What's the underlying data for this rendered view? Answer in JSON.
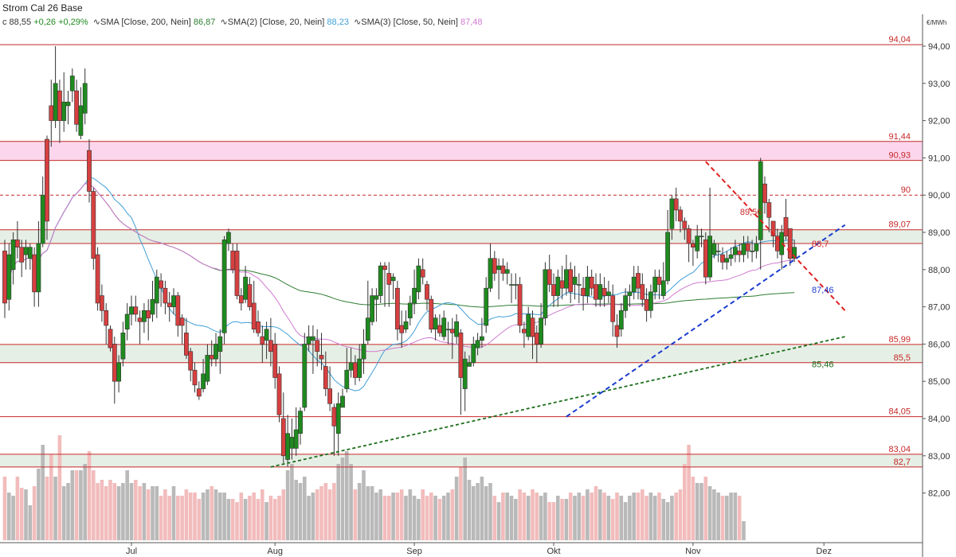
{
  "header": {
    "title": "Strom Cal 26 Base",
    "close_label": "c 88,55",
    "change_abs": "+0,26",
    "change_pct": "+0,29%",
    "indicators": [
      {
        "label": "SMA [Close, 200, Nein]",
        "value": "86,87",
        "color": "#2e7d32"
      },
      {
        "label": "SMA(2) [Close, 20, Nein]",
        "value": "88,23",
        "color": "#3f9fd8"
      },
      {
        "label": "SMA(3) [Close, 50, Nein]",
        "value": "87,48",
        "color": "#d07ad0"
      }
    ],
    "unit": "€/MWh"
  },
  "colors": {
    "up": "#1f8a1f",
    "down": "#d64040",
    "level": "#c62828",
    "zone_green": "#e6efe6",
    "zone_pink": "#fcd6ec",
    "vol_up": "#b9b9b9",
    "vol_down": "#f2bcbc",
    "trend_blue": "#1a3ccf",
    "trend_green": "#1b6e1b",
    "trend_red": "#e02020"
  },
  "chart_data": {
    "type": "candlestick",
    "title": "Strom Cal 26 Base",
    "ylabel": "€/MWh",
    "ylim": [
      81.0,
      94.6
    ],
    "yticks": [
      {
        "v": 82,
        "label": "82,00"
      },
      {
        "v": 83,
        "label": "83,00"
      },
      {
        "v": 84,
        "label": "84,00"
      },
      {
        "v": 85,
        "label": "85,00"
      },
      {
        "v": 86,
        "label": "86,00"
      },
      {
        "v": 87,
        "label": "87,00"
      },
      {
        "v": 88,
        "label": "88,00"
      },
      {
        "v": 89,
        "label": "89,00"
      },
      {
        "v": 90,
        "label": "90,00"
      },
      {
        "v": 91,
        "label": "91,00"
      },
      {
        "v": 92,
        "label": "92,00"
      },
      {
        "v": 93,
        "label": "93,00"
      },
      {
        "v": 94,
        "label": "94,00"
      }
    ],
    "xticks": [
      {
        "i": 30,
        "label": "Jul"
      },
      {
        "i": 64,
        "label": "Aug"
      },
      {
        "i": 97,
        "label": "Sep"
      },
      {
        "i": 130,
        "label": "Okt"
      },
      {
        "i": 163,
        "label": "Nov"
      },
      {
        "i": 194,
        "label": "Dez"
      }
    ],
    "candles": [
      [
        88.5,
        87.1,
        88.8,
        86.7
      ],
      [
        87.2,
        88.4,
        88.7,
        86.9
      ],
      [
        88.0,
        88.8,
        89.0,
        87.6
      ],
      [
        88.8,
        88.6,
        89.3,
        88.3
      ],
      [
        88.6,
        88.2,
        88.8,
        87.8
      ],
      [
        88.4,
        88.6,
        88.8,
        88.0
      ],
      [
        88.3,
        88.6,
        88.7,
        88.0
      ],
      [
        88.4,
        87.4,
        88.6,
        87.0
      ],
      [
        87.4,
        88.7,
        89.3,
        87.0
      ],
      [
        88.7,
        90.0,
        90.5,
        88.6
      ],
      [
        91.5,
        89.3,
        91.6,
        88.8
      ],
      [
        92.4,
        92.0,
        93.1,
        91.3
      ],
      [
        92.0,
        93.0,
        94.0,
        91.8
      ],
      [
        92.8,
        92.0,
        93.1,
        91.4
      ],
      [
        92.0,
        92.5,
        93.3,
        91.7
      ],
      [
        92.4,
        92.5,
        92.8,
        91.9
      ],
      [
        92.8,
        93.2,
        93.4,
        92.5
      ],
      [
        92.8,
        91.9,
        93.1,
        91.7
      ],
      [
        91.6,
        92.4,
        92.9,
        91.5
      ],
      [
        92.2,
        93.0,
        93.4,
        91.9
      ],
      [
        91.2,
        90.1,
        91.5,
        89.8
      ],
      [
        90.1,
        88.3,
        90.2,
        88.0
      ],
      [
        88.4,
        87.1,
        88.6,
        86.9
      ],
      [
        87.3,
        86.9,
        87.6,
        86.6
      ],
      [
        86.9,
        86.5,
        87.1,
        86.0
      ],
      [
        86.4,
        85.9,
        86.5,
        85.8
      ],
      [
        86.0,
        85.0,
        86.2,
        84.4
      ],
      [
        85.0,
        85.5,
        85.7,
        84.7
      ],
      [
        85.6,
        86.3,
        86.6,
        85.4
      ],
      [
        86.4,
        86.8,
        87.1,
        86.1
      ],
      [
        86.8,
        87.0,
        87.3,
        86.5
      ],
      [
        87.0,
        86.8,
        87.3,
        86.6
      ],
      [
        86.7,
        86.6,
        86.9,
        86.0
      ],
      [
        86.6,
        86.9,
        87.1,
        86.3
      ],
      [
        86.9,
        86.7,
        87.2,
        86.1
      ],
      [
        86.8,
        87.2,
        87.7,
        86.6
      ],
      [
        87.1,
        87.8,
        88.0,
        86.7
      ],
      [
        87.7,
        87.5,
        87.9,
        87.0
      ],
      [
        87.5,
        87.1,
        87.7,
        86.8
      ],
      [
        87.1,
        87.0,
        87.4,
        86.6
      ],
      [
        87.0,
        87.3,
        87.5,
        86.8
      ],
      [
        87.3,
        86.5,
        87.4,
        86.2
      ],
      [
        86.7,
        86.5,
        86.8,
        86.0
      ],
      [
        86.3,
        85.7,
        86.7,
        85.6
      ],
      [
        85.8,
        85.3,
        85.9,
        85.0
      ],
      [
        85.3,
        84.9,
        85.5,
        84.7
      ],
      [
        84.8,
        84.6,
        85.0,
        84.5
      ],
      [
        84.8,
        85.2,
        85.6,
        84.7
      ],
      [
        85.0,
        85.7,
        86.0,
        84.9
      ],
      [
        85.7,
        85.6,
        86.1,
        85.4
      ],
      [
        85.6,
        86.0,
        86.3,
        85.4
      ],
      [
        85.8,
        86.2,
        86.4,
        85.2
      ],
      [
        86.3,
        88.8,
        88.9,
        86.0
      ],
      [
        88.7,
        89.0,
        89.1,
        88.5
      ],
      [
        88.5,
        88.0,
        88.7,
        87.9
      ],
      [
        88.5,
        87.3,
        88.7,
        87.2
      ],
      [
        87.3,
        87.1,
        87.5,
        86.9
      ],
      [
        87.2,
        87.8,
        88.1,
        87.1
      ],
      [
        87.6,
        87.0,
        87.8,
        86.9
      ],
      [
        87.1,
        86.4,
        87.7,
        86.3
      ],
      [
        86.6,
        86.3,
        86.9,
        86.2
      ],
      [
        86.2,
        86.0,
        86.5,
        85.5
      ],
      [
        86.1,
        86.4,
        86.6,
        85.6
      ],
      [
        86.1,
        85.8,
        86.7,
        85.4
      ],
      [
        86.0,
        85.1,
        86.3,
        84.8
      ],
      [
        85.2,
        84.1,
        85.4,
        83.9
      ],
      [
        84.0,
        83.0,
        84.7,
        82.8
      ],
      [
        82.9,
        83.6,
        84.1,
        82.7
      ],
      [
        83.2,
        83.5,
        84.0,
        82.9
      ],
      [
        83.2,
        83.7,
        84.3,
        83.0
      ],
      [
        83.6,
        84.2,
        84.3,
        83.3
      ],
      [
        84.3,
        86.0,
        86.3,
        84.2
      ],
      [
        86.0,
        86.2,
        86.5,
        85.8
      ],
      [
        86.1,
        86.2,
        86.5,
        85.2
      ],
      [
        86.1,
        85.8,
        86.4,
        85.4
      ],
      [
        85.7,
        85.6,
        86.3,
        85.3
      ],
      [
        85.4,
        84.8,
        85.8,
        84.6
      ],
      [
        84.8,
        84.4,
        85.4,
        84.2
      ],
      [
        84.3,
        83.8,
        84.4,
        83.0
      ],
      [
        83.6,
        84.4,
        84.7,
        83.0
      ],
      [
        84.3,
        84.6,
        84.8,
        84.3
      ],
      [
        84.8,
        85.3,
        85.9,
        84.7
      ],
      [
        85.3,
        85.5,
        85.9,
        85.1
      ],
      [
        85.5,
        85.1,
        85.7,
        84.9
      ],
      [
        85.1,
        85.6,
        86.0,
        85.0
      ],
      [
        85.6,
        86.0,
        86.4,
        85.2
      ],
      [
        86.1,
        86.7,
        87.7,
        86.0
      ],
      [
        86.6,
        87.3,
        87.5,
        86.5
      ],
      [
        87.2,
        87.3,
        87.5,
        86.6
      ],
      [
        87.3,
        88.1,
        88.2,
        87.1
      ],
      [
        88.1,
        88.0,
        88.2,
        87.0
      ],
      [
        87.9,
        87.6,
        88.2,
        87.0
      ],
      [
        87.7,
        87.8,
        87.9,
        87.2
      ],
      [
        87.5,
        86.4,
        87.7,
        86.1
      ],
      [
        86.5,
        86.3,
        86.9,
        85.9
      ],
      [
        86.4,
        86.6,
        86.9,
        86.3
      ],
      [
        86.7,
        87.1,
        87.3,
        86.5
      ],
      [
        87.1,
        87.5,
        88.0,
        86.8
      ],
      [
        87.4,
        88.1,
        88.3,
        87.2
      ],
      [
        88.0,
        87.8,
        88.3,
        87.6
      ],
      [
        87.6,
        87.2,
        87.7,
        86.9
      ],
      [
        87.2,
        86.4,
        87.3,
        86.3
      ],
      [
        86.4,
        86.7,
        86.8,
        86.1
      ],
      [
        86.5,
        86.3,
        86.8,
        86.2
      ],
      [
        86.2,
        86.7,
        86.9,
        86.1
      ],
      [
        86.4,
        86.4,
        86.6,
        86.0
      ],
      [
        86.4,
        86.3,
        86.7,
        85.6
      ],
      [
        86.2,
        86.6,
        86.8,
        86.0
      ],
      [
        86.3,
        85.1,
        86.4,
        84.1
      ],
      [
        84.8,
        85.6,
        85.8,
        84.2
      ],
      [
        85.4,
        85.5,
        85.7,
        85.4
      ],
      [
        85.5,
        86.0,
        86.2,
        85.4
      ],
      [
        85.9,
        86.1,
        86.3,
        85.7
      ],
      [
        86.1,
        86.2,
        86.7,
        85.9
      ],
      [
        86.5,
        87.5,
        87.8,
        86.3
      ],
      [
        87.5,
        88.3,
        88.7,
        87.4
      ],
      [
        88.3,
        87.9,
        88.5,
        87.7
      ],
      [
        88.0,
        88.1,
        88.3,
        87.2
      ],
      [
        88.1,
        87.9,
        88.3,
        87.7
      ],
      [
        87.9,
        88.0,
        88.2,
        87.6
      ],
      [
        87.6,
        87.6,
        87.9,
        87.1
      ],
      [
        87.6,
        87.6,
        87.9,
        87.2
      ],
      [
        87.6,
        86.5,
        87.8,
        86.3
      ],
      [
        86.4,
        86.3,
        86.6,
        85.9
      ],
      [
        86.2,
        86.8,
        87.0,
        86.1
      ],
      [
        86.7,
        86.2,
        86.9,
        85.6
      ],
      [
        86.3,
        86.0,
        86.5,
        85.5
      ],
      [
        86.0,
        86.7,
        87.1,
        85.9
      ],
      [
        86.7,
        88.0,
        88.2,
        86.5
      ],
      [
        88.0,
        87.6,
        88.4,
        87.4
      ],
      [
        87.6,
        87.3,
        87.9,
        87.0
      ],
      [
        87.3,
        87.8,
        88.0,
        87.0
      ],
      [
        87.7,
        87.5,
        88.1,
        87.2
      ],
      [
        87.5,
        88.0,
        88.4,
        87.3
      ],
      [
        88.0,
        87.4,
        88.2,
        87.1
      ],
      [
        87.6,
        87.8,
        88.1,
        87.2
      ],
      [
        87.6,
        87.6,
        87.9,
        87.1
      ],
      [
        87.5,
        87.3,
        87.8,
        86.9
      ],
      [
        87.3,
        87.8,
        88.1,
        87.1
      ],
      [
        87.8,
        87.5,
        88.0,
        87.3
      ],
      [
        87.6,
        87.2,
        87.9,
        87.0
      ],
      [
        87.2,
        87.6,
        87.9,
        87.0
      ],
      [
        87.5,
        87.3,
        87.8,
        87.0
      ],
      [
        87.3,
        87.4,
        87.7,
        87.1
      ],
      [
        87.3,
        86.6,
        87.6,
        86.2
      ],
      [
        86.5,
        86.2,
        86.8,
        85.9
      ],
      [
        86.4,
        86.9,
        87.1,
        86.2
      ],
      [
        86.9,
        87.3,
        87.5,
        86.7
      ],
      [
        87.3,
        87.4,
        87.6,
        87.0
      ],
      [
        87.4,
        87.8,
        88.1,
        87.2
      ],
      [
        87.9,
        87.5,
        88.1,
        87.2
      ],
      [
        87.6,
        87.2,
        87.9,
        87.0
      ],
      [
        87.2,
        86.9,
        87.5,
        86.6
      ],
      [
        86.9,
        87.4,
        87.6,
        86.7
      ],
      [
        87.4,
        87.8,
        88.0,
        87.2
      ],
      [
        87.8,
        87.6,
        88.0,
        87.2
      ],
      [
        87.3,
        87.7,
        88.2,
        87.2
      ],
      [
        87.7,
        89.0,
        89.6,
        87.6
      ],
      [
        89.1,
        89.9,
        90.0,
        88.8
      ],
      [
        89.9,
        89.6,
        90.2,
        89.3
      ],
      [
        89.6,
        89.3,
        89.7,
        89.0
      ],
      [
        89.3,
        89.1,
        89.4,
        88.8
      ],
      [
        89.1,
        88.7,
        89.2,
        88.2
      ],
      [
        88.7,
        88.6,
        88.8,
        88.1
      ],
      [
        88.5,
        88.9,
        89.2,
        88.3
      ],
      [
        88.9,
        88.9,
        89.1,
        88.6
      ],
      [
        88.8,
        87.8,
        89.0,
        87.6
      ],
      [
        87.8,
        88.9,
        90.2,
        87.7
      ],
      [
        88.4,
        88.7,
        88.8,
        88.3
      ],
      [
        88.5,
        88.5,
        88.7,
        88.2
      ],
      [
        88.4,
        88.2,
        88.6,
        88.0
      ],
      [
        88.2,
        88.3,
        88.5,
        88.0
      ],
      [
        88.3,
        88.4,
        88.6,
        88.1
      ],
      [
        88.4,
        88.6,
        88.8,
        88.2
      ],
      [
        88.5,
        88.4,
        88.7,
        88.2
      ],
      [
        88.4,
        88.7,
        88.9,
        88.2
      ],
      [
        88.7,
        88.5,
        88.9,
        88.3
      ],
      [
        88.5,
        88.5,
        88.8,
        88.2
      ],
      [
        88.5,
        88.7,
        88.9,
        88.3
      ],
      [
        88.8,
        90.9,
        91.0,
        88.0
      ],
      [
        90.3,
        89.8,
        90.5,
        89.5
      ],
      [
        89.8,
        89.4,
        89.9,
        89.0
      ],
      [
        89.3,
        88.9,
        89.3,
        88.6
      ],
      [
        88.9,
        88.5,
        89.1,
        88.3
      ],
      [
        88.4,
        89.0,
        89.2,
        88.0
      ],
      [
        89.4,
        88.9,
        89.9,
        88.8
      ],
      [
        89.1,
        88.3,
        89.1,
        88.1
      ],
      [
        88.3,
        88.6,
        88.8,
        88.2
      ]
    ],
    "volume": [
      40,
      30,
      28,
      40,
      33,
      32,
      22,
      34,
      45,
      60,
      40,
      54,
      40,
      66,
      34,
      36,
      44,
      44,
      44,
      48,
      56,
      44,
      36,
      38,
      34,
      38,
      36,
      34,
      36,
      44,
      36,
      38,
      34,
      36,
      32,
      34,
      34,
      28,
      32,
      28,
      34,
      28,
      28,
      32,
      30,
      30,
      26,
      30,
      32,
      34,
      32,
      30,
      30,
      26,
      26,
      24,
      30,
      26,
      28,
      30,
      26,
      32,
      24,
      28,
      26,
      28,
      32,
      44,
      48,
      38,
      36,
      40,
      28,
      30,
      32,
      34,
      36,
      32,
      36,
      48,
      52,
      56,
      48,
      32,
      36,
      44,
      34,
      34,
      30,
      32,
      28,
      28,
      30,
      30,
      32,
      28,
      32,
      28,
      26,
      32,
      28,
      30,
      28,
      26,
      28,
      30,
      32,
      40,
      46,
      52,
      38,
      34,
      36,
      40,
      34,
      36,
      28,
      24,
      30,
      30,
      28,
      26,
      32,
      30,
      28,
      32,
      30,
      28,
      30,
      24,
      24,
      28,
      26,
      26,
      30,
      28,
      30,
      28,
      32,
      30,
      34,
      32,
      30,
      28,
      26,
      30,
      28,
      24,
      28,
      30,
      30,
      32,
      28,
      30,
      28,
      30,
      26,
      24,
      28,
      30,
      32,
      48,
      60,
      40,
      36,
      36,
      40,
      34,
      32,
      30,
      28,
      28,
      30,
      30,
      28,
      12
    ],
    "sma_labels": [
      {
        "i": 190,
        "v": 88.7,
        "text": "88,7",
        "color": "#c62828"
      },
      {
        "i": 190,
        "v": 87.46,
        "text": "87,46",
        "color": "#1a3ccf"
      },
      {
        "i": 190,
        "v": 85.46,
        "text": "85,46",
        "color": "#1b6e1b"
      },
      {
        "i": 173,
        "v": 89.56,
        "text": "89,56",
        "color": "#c62828"
      }
    ],
    "levels": [
      {
        "v": 94.04,
        "label": "94,04",
        "style": "solid"
      },
      {
        "v": 91.44,
        "label": "91,44",
        "style": "solid"
      },
      {
        "v": 90.93,
        "label": "90,93",
        "style": "solid"
      },
      {
        "v": 90.0,
        "label": "90",
        "style": "dashed"
      },
      {
        "v": 89.07,
        "label": "89,07",
        "style": "solid"
      },
      {
        "v": 88.7,
        "label": "",
        "style": "solid"
      },
      {
        "v": 85.99,
        "label": "85,99",
        "style": "solid"
      },
      {
        "v": 85.5,
        "label": "85,5",
        "style": "solid"
      },
      {
        "v": 84.05,
        "label": "84,05",
        "style": "solid"
      },
      {
        "v": 83.04,
        "label": "83,04",
        "style": "solid"
      },
      {
        "v": 82.7,
        "label": "82,7",
        "style": "solid"
      }
    ],
    "zones": [
      {
        "from": 90.93,
        "to": 91.44,
        "kind": "pink"
      },
      {
        "from": 88.7,
        "to": 89.07,
        "kind": "green"
      },
      {
        "from": 85.5,
        "to": 85.99,
        "kind": "green"
      },
      {
        "from": 82.7,
        "to": 83.04,
        "kind": "green"
      }
    ],
    "trendlines": [
      {
        "from": [
          63,
          82.7
        ],
        "to": [
          199,
          86.2
        ],
        "kind": "green"
      },
      {
        "from": [
          133,
          84.05
        ],
        "to": [
          199,
          89.2
        ],
        "kind": "blue"
      },
      {
        "from": [
          166,
          90.9
        ],
        "to": [
          199,
          86.9
        ],
        "kind": "red"
      }
    ]
  }
}
